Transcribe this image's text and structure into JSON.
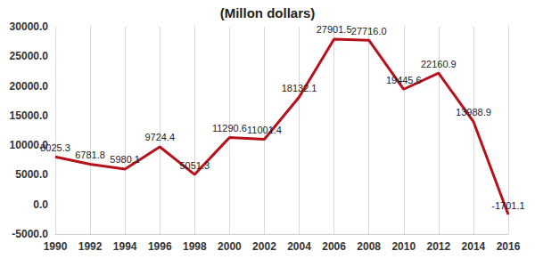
{
  "chart_data": {
    "type": "line",
    "title": "(Millon dollars)",
    "categories": [
      "1990",
      "1992",
      "1994",
      "1996",
      "1998",
      "2000",
      "2002",
      "2004",
      "2006",
      "2008",
      "2010",
      "2012",
      "2014",
      "2016"
    ],
    "values": [
      8025.3,
      6781.8,
      5980.1,
      9724.4,
      5051.3,
      11290.6,
      11001.4,
      18132.1,
      27901.5,
      27716.0,
      19445.6,
      22160.9,
      13988.9,
      -1701.1
    ],
    "value_labels": [
      "8025.3",
      "6781.8",
      "5980.1",
      "9724.4",
      "5051.3",
      "11290.6",
      "11001.4",
      "18132.1",
      "27901.5",
      "27716.0",
      "19445.6",
      "22160.9",
      "13988.9",
      "-1701.1"
    ],
    "color": "#b5121b",
    "ylim": [
      -5000,
      30000
    ],
    "yticks": [
      {
        "value": -5000,
        "label": "-5000.0"
      },
      {
        "value": 0,
        "label": "0.0"
      },
      {
        "value": 5000,
        "label": "5000.0"
      },
      {
        "value": 10000,
        "label": "10000.0"
      },
      {
        "value": 15000,
        "label": "15000.0"
      },
      {
        "value": 20000,
        "label": "20000.0"
      },
      {
        "value": 25000,
        "label": "25000.0"
      },
      {
        "value": 30000,
        "label": "30000.0"
      }
    ],
    "grid": true,
    "data_labels": true
  }
}
